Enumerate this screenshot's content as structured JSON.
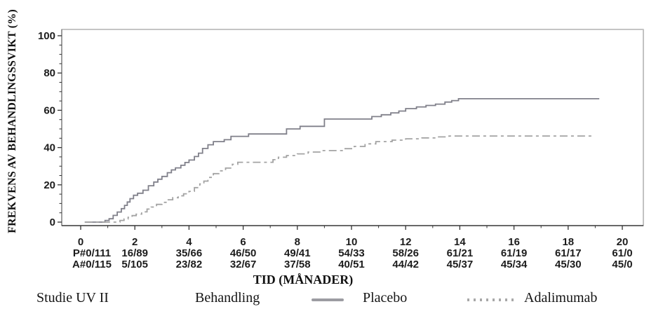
{
  "page": {
    "background": "#ffffff"
  },
  "chart_data": {
    "type": "line",
    "subtype": "kaplan-meier-step",
    "title": "",
    "xlabel": "TID (MÅNADER)",
    "ylabel": "FREKVENS AV BEHANDLINGSSVIKT (%)",
    "xlim": [
      0,
      20
    ],
    "ylim": [
      0,
      100
    ],
    "x_ticks": [
      0,
      2,
      4,
      6,
      8,
      10,
      12,
      14,
      16,
      18,
      20
    ],
    "y_ticks": [
      0,
      20,
      40,
      60,
      80,
      100
    ],
    "x_minor_step": 1,
    "y_minor_step": 5,
    "grid": false,
    "series": [
      {
        "name": "Placebo",
        "line_style": "solid",
        "color": "#80808a",
        "dash": "",
        "points": [
          [
            0.15,
            0
          ],
          [
            0.9,
            0.9
          ],
          [
            1.05,
            1.8
          ],
          [
            1.2,
            3.6
          ],
          [
            1.35,
            5.4
          ],
          [
            1.5,
            7.2
          ],
          [
            1.62,
            9
          ],
          [
            1.72,
            10.8
          ],
          [
            1.82,
            12.6
          ],
          [
            1.95,
            14.4
          ],
          [
            2.1,
            15.5
          ],
          [
            2.3,
            17.1
          ],
          [
            2.5,
            19.5
          ],
          [
            2.7,
            21.5
          ],
          [
            2.85,
            23
          ],
          [
            3.0,
            24.5
          ],
          [
            3.2,
            26.5
          ],
          [
            3.35,
            28
          ],
          [
            3.5,
            29.1
          ],
          [
            3.7,
            30.5
          ],
          [
            3.85,
            32
          ],
          [
            4.0,
            33.3
          ],
          [
            4.2,
            35.2
          ],
          [
            4.35,
            37
          ],
          [
            4.5,
            39.5
          ],
          [
            4.7,
            41.5
          ],
          [
            4.9,
            43.2
          ],
          [
            5.3,
            44.2
          ],
          [
            5.55,
            46
          ],
          [
            6.2,
            47.3
          ],
          [
            7.6,
            50
          ],
          [
            8.1,
            51.4
          ],
          [
            9.0,
            55.3
          ],
          [
            10.75,
            56.6
          ],
          [
            11.1,
            57.6
          ],
          [
            11.45,
            58.6
          ],
          [
            11.75,
            59.6
          ],
          [
            12.0,
            60.9
          ],
          [
            12.4,
            61.8
          ],
          [
            12.75,
            62.6
          ],
          [
            13.1,
            63.3
          ],
          [
            13.45,
            64.4
          ],
          [
            13.7,
            65.2
          ],
          [
            13.95,
            66.2
          ],
          [
            19.15,
            66.2
          ]
        ]
      },
      {
        "name": "Adalimumab",
        "line_style": "dashed",
        "color": "#a3a3a3",
        "dash": "11 5 4 5",
        "points": [
          [
            0.15,
            0
          ],
          [
            1.45,
            0.9
          ],
          [
            1.6,
            1.7
          ],
          [
            1.75,
            2.6
          ],
          [
            1.9,
            3.5
          ],
          [
            2.05,
            4.3
          ],
          [
            2.25,
            5.5
          ],
          [
            2.45,
            7
          ],
          [
            2.6,
            8.1
          ],
          [
            2.8,
            9.5
          ],
          [
            3.0,
            10.6
          ],
          [
            3.2,
            12
          ],
          [
            3.4,
            13.1
          ],
          [
            3.6,
            14.1
          ],
          [
            3.8,
            15.2
          ],
          [
            4.0,
            16.5
          ],
          [
            4.2,
            18.5
          ],
          [
            4.4,
            20.5
          ],
          [
            4.55,
            22
          ],
          [
            4.7,
            24
          ],
          [
            4.9,
            26
          ],
          [
            5.1,
            27.5
          ],
          [
            5.35,
            29
          ],
          [
            5.6,
            31
          ],
          [
            5.8,
            32.1
          ],
          [
            7.1,
            33.5
          ],
          [
            7.3,
            34.8
          ],
          [
            7.6,
            35.7
          ],
          [
            8.0,
            36.6
          ],
          [
            8.4,
            37.6
          ],
          [
            8.9,
            38.4
          ],
          [
            9.7,
            39.4
          ],
          [
            10.1,
            40.6
          ],
          [
            10.5,
            42
          ],
          [
            10.9,
            43.2
          ],
          [
            11.5,
            44
          ],
          [
            12.0,
            44.7
          ],
          [
            12.6,
            45.2
          ],
          [
            13.1,
            45.7
          ],
          [
            13.6,
            46.2
          ],
          [
            18.9,
            46.2
          ]
        ]
      }
    ],
    "at_risk_rows": [
      {
        "prefix": "P#",
        "values": [
          "0/111",
          "16/89",
          "35/66",
          "46/50",
          "49/41",
          "54/33",
          "58/26",
          "61/21",
          "61/19",
          "61/17",
          "61/0"
        ]
      },
      {
        "prefix": "A#",
        "values": [
          "0/115",
          "5/105",
          "23/82",
          "32/67",
          "37/58",
          "40/51",
          "44/42",
          "45/37",
          "45/34",
          "45/30",
          "45/0"
        ]
      }
    ],
    "legend": {
      "position": "bottom",
      "study_label": "Studie UV II",
      "treatment_label": "Behandling",
      "items": [
        {
          "label": "Placebo",
          "line_style": "solid",
          "color": "#9c9ca2"
        },
        {
          "label": "Adalimumab",
          "line_style": "dotted",
          "color": "#a8a8a8"
        }
      ]
    },
    "axis_colors": {
      "frame": "#9a9a9a",
      "frame_top": "#c4c4c4",
      "frame_bottom": "#3c3c3c",
      "frame_left": "#6a6a6a",
      "tick": "#333333",
      "tick_label": "#1c1c1c"
    }
  }
}
